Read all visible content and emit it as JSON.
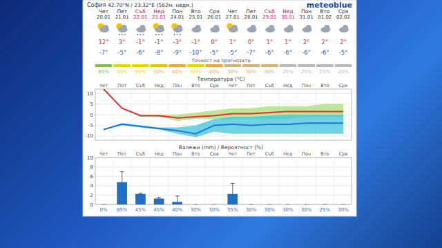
{
  "header": {
    "location": "София",
    "coordinates": "42.70°N / 23.32°E (562м. надм.)",
    "brand": "meteoblue"
  },
  "days": [
    {
      "day": "Чет",
      "date": "20.01",
      "max": 12,
      "max_label": "12°",
      "min": -7,
      "min_label": "-7°",
      "color": "#333333"
    },
    {
      "day": "Пет",
      "date": "21.01",
      "max": 3,
      "max_label": "3°",
      "min": -5,
      "min_label": "-5°",
      "color": "#333333"
    },
    {
      "day": "Съб",
      "date": "22.01",
      "max": -1,
      "max_label": "-1°",
      "min": -6,
      "min_label": "-6°",
      "color": "#c8106e"
    },
    {
      "day": "Нед",
      "date": "23.01",
      "max": -1,
      "max_label": "-1°",
      "min": -8,
      "min_label": "-8°",
      "color": "#c8106e"
    },
    {
      "day": "Пон",
      "date": "24.01",
      "max": -3,
      "max_label": "-3°",
      "min": -9,
      "min_label": "-9°",
      "color": "#333333"
    },
    {
      "day": "Вто",
      "date": "25.01",
      "max": -1,
      "max_label": "-1°",
      "min": -10,
      "min_label": "-10°",
      "color": "#333333"
    },
    {
      "day": "Сря",
      "date": "26.01",
      "max": 0,
      "max_label": "0°",
      "min": -5,
      "min_label": "-5°",
      "color": "#333333"
    },
    {
      "day": "Чет",
      "date": "27.01",
      "max": 1,
      "max_label": "1°",
      "min": -5,
      "min_label": "-5°",
      "color": "#333333"
    },
    {
      "day": "Пет",
      "date": "28.01",
      "max": 0,
      "max_label": "0°",
      "min": -7,
      "min_label": "-7°",
      "color": "#333333"
    },
    {
      "day": "Съб",
      "date": "29.01",
      "max": 1,
      "max_label": "1°",
      "min": -6,
      "min_label": "-6°",
      "color": "#c8106e"
    },
    {
      "day": "Нед",
      "date": "30.01",
      "max": 1,
      "max_label": "1°",
      "min": -6,
      "min_label": "-6°",
      "color": "#c8106e"
    },
    {
      "day": "Пон",
      "date": "31.01",
      "max": 2,
      "max_label": "2°",
      "min": -6,
      "min_label": "-6°",
      "color": "#333333"
    },
    {
      "day": "Вто",
      "date": "01.02",
      "max": 2,
      "max_label": "2°",
      "min": -6,
      "min_label": "-6°",
      "color": "#333333"
    },
    {
      "day": "Сря",
      "date": "02.02",
      "max": 2,
      "max_label": "2°",
      "min": -5,
      "min_label": "-5°",
      "color": "#333333"
    }
  ],
  "accuracy": {
    "label": "Точност на прогнозата",
    "values": [
      85,
      55,
      55,
      50,
      40,
      55,
      40,
      30,
      30,
      30,
      25,
      25,
      25,
      20
    ],
    "value_labels": [
      "85%",
      "55%",
      "55%",
      "50%",
      "40%",
      "55%",
      "40%",
      "30%",
      "30%",
      "30%",
      "25%",
      "25%",
      "25%",
      "20%"
    ],
    "colors": [
      "#7dc242",
      "#e8d400",
      "#e8d400",
      "#e8c000",
      "#f0a830",
      "#e8d400",
      "#f0a830",
      "#d9b070",
      "#d9b070",
      "#d9b070",
      "#b8b8c0",
      "#b8b8c0",
      "#b8b8c0",
      "#b8b8c0"
    ]
  },
  "chart_data": [
    {
      "type": "line",
      "title": "Температура (°C)",
      "categories": [
        "Чет",
        "Пет",
        "Съб",
        "Нед",
        "Пон",
        "Вто",
        "Сря",
        "Чет",
        "Пет",
        "Съб",
        "Нед",
        "Пон",
        "Вто",
        "Сря"
      ],
      "ylim": [
        -12,
        12
      ],
      "yticks": [
        -10,
        -5,
        0,
        5,
        10
      ],
      "grid": true,
      "series": [
        {
          "type": "area",
          "color": "#a8dc78",
          "values": [
            12,
            3,
            0,
            0,
            0,
            1,
            2,
            3,
            3,
            4,
            4,
            4,
            5,
            5
          ],
          "lower": [
            12,
            3,
            -1,
            -1,
            -3,
            -2,
            -2,
            -2,
            -2,
            -2,
            -2,
            -1,
            -1,
            -1
          ]
        },
        {
          "type": "area",
          "color": "#40c4dc",
          "values": [
            -7,
            -4,
            -5,
            -6,
            -6,
            -5,
            -2,
            -1,
            -1,
            -0.5,
            0,
            0,
            0,
            0
          ],
          "lower": [
            -7,
            -5,
            -6,
            -7,
            -9,
            -10.5,
            -8,
            -9,
            -9,
            -9,
            -9,
            -9,
            -9,
            -9
          ]
        },
        {
          "type": "line",
          "color": "#e03030",
          "values": [
            12,
            3,
            -0.5,
            -0.5,
            -1.5,
            -1,
            -0.5,
            0.5,
            0.5,
            1,
            1.5,
            1.5,
            1.5,
            1.5
          ]
        },
        {
          "type": "line",
          "color": "#1e78d0",
          "values": [
            -7,
            -4.5,
            -5.5,
            -6.5,
            -7.5,
            -9,
            -5,
            -4.5,
            -5,
            -4.5,
            -4.5,
            -4,
            -4,
            -4
          ]
        }
      ]
    },
    {
      "type": "bar",
      "title": "Валежи (mm) / Вероятност (%)",
      "categories": [
        "Чет",
        "Пет",
        "Съб",
        "Нед",
        "Пон",
        "Вто",
        "Сря",
        "Чет",
        "Пет",
        "Съб",
        "Нед",
        "Пон",
        "Вто",
        "Сря"
      ],
      "values": [
        0,
        4.7,
        2.2,
        1.2,
        0.5,
        0,
        0,
        2.2,
        0,
        0,
        0,
        0,
        0,
        0
      ],
      "error": [
        0,
        2.3,
        0.2,
        0.3,
        1.3,
        0,
        0,
        2.3,
        0,
        0,
        0,
        0,
        0,
        0
      ],
      "color": "#1f6fc4",
      "ylim": [
        0,
        10
      ],
      "yticks": [
        0,
        2,
        4,
        6,
        8,
        10
      ],
      "grid": true,
      "probability": [
        0,
        85,
        45,
        45,
        40,
        30,
        30,
        35,
        30,
        30,
        30,
        30,
        25,
        30
      ],
      "probability_labels": [
        "0%",
        "85%",
        "45%",
        "45%",
        "40%",
        "30%",
        "30%",
        "35%",
        "30%",
        "30%",
        "30%",
        "30%",
        "25%",
        "30%"
      ]
    }
  ]
}
